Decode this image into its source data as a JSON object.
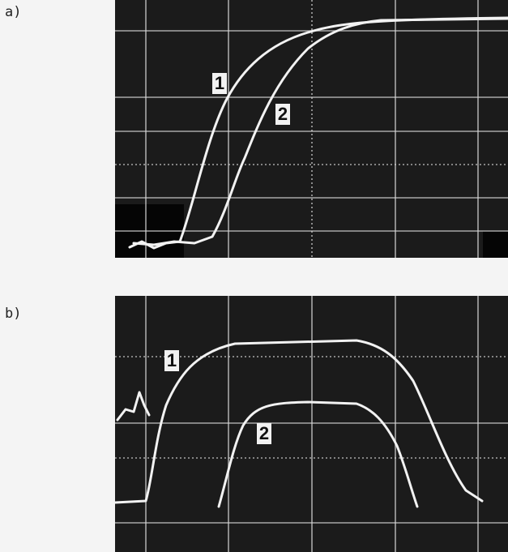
{
  "panels": [
    {
      "label": "a)",
      "traces": [
        "1",
        "2"
      ]
    },
    {
      "label": "b)",
      "traces": [
        "1",
        "2"
      ]
    }
  ]
}
